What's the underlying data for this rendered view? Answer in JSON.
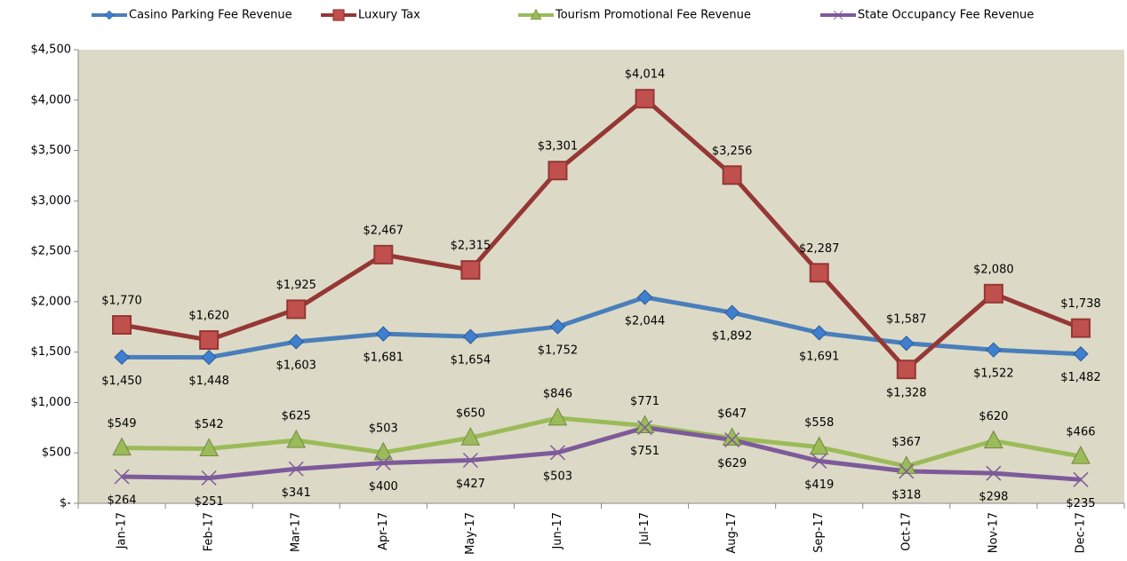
{
  "chart_data": {
    "type": "line",
    "categories": [
      "Jan-17",
      "Feb-17",
      "Mar-17",
      "Apr-17",
      "May-17",
      "Jun-17",
      "Jul-17",
      "Aug-17",
      "Sep-17",
      "Oct-17",
      "Nov-17",
      "Dec-17"
    ],
    "series": [
      {
        "name": "Casino Parking Fee Revenue",
        "color": "#4a7ebb",
        "marker": "diamond",
        "values": [
          1450,
          1448,
          1603,
          1681,
          1654,
          1752,
          2044,
          1892,
          1691,
          1587,
          1522,
          1482
        ],
        "value_labels": [
          "$1,450",
          "$1,448",
          "$1,603",
          "$1,681",
          "$1,654",
          "$1,752",
          "$2,044",
          "$1,892",
          "$1,691",
          "$1,587",
          "$1,522",
          "$1,482"
        ]
      },
      {
        "name": "Luxury Tax",
        "color": "#953735",
        "marker": "square",
        "values": [
          1770,
          1620,
          1925,
          2467,
          2315,
          3301,
          4014,
          3256,
          2287,
          1328,
          2080,
          1738
        ],
        "value_labels": [
          "$1,770",
          "$1,620",
          "$1,925",
          "$2,467",
          "$2,315",
          "$3,301",
          "$4,014",
          "$3,256",
          "$2,287",
          "$1,328",
          "$2,080",
          "$1,738"
        ]
      },
      {
        "name": "Tourism Promotional Fee Revenue",
        "color": "#9bbb59",
        "marker": "triangle",
        "values": [
          549,
          542,
          625,
          503,
          650,
          846,
          771,
          647,
          558,
          367,
          620,
          466
        ],
        "value_labels": [
          "$549",
          "$542",
          "$625",
          "$503",
          "$650",
          "$846",
          "$771",
          "$647",
          "$558",
          "$367",
          "$620",
          "$466"
        ]
      },
      {
        "name": "State Occupancy Fee Revenue",
        "color": "#7e5a9b",
        "marker": "x",
        "values": [
          264,
          251,
          341,
          400,
          427,
          503,
          751,
          629,
          419,
          318,
          298,
          235
        ],
        "value_labels": [
          "$264",
          "$251",
          "$341",
          "$400",
          "$427",
          "$503",
          "$751",
          "$629",
          "$419",
          "$318",
          "$298",
          "$235"
        ]
      }
    ],
    "ylim": [
      0,
      4500
    ],
    "yticks": [
      {
        "value": 0,
        "label": "$-"
      },
      {
        "value": 500,
        "label": "$500"
      },
      {
        "value": 1000,
        "label": "$1,000"
      },
      {
        "value": 1500,
        "label": "$1,500"
      },
      {
        "value": 2000,
        "label": "$2,000"
      },
      {
        "value": 2500,
        "label": "$2,500"
      },
      {
        "value": 3000,
        "label": "$3,000"
      },
      {
        "value": 3500,
        "label": "$3,500"
      },
      {
        "value": 4000,
        "label": "$4,000"
      },
      {
        "value": 4500,
        "label": "$4,500"
      }
    ],
    "grid": false,
    "legend": "top",
    "plot_background": "#dcdac6"
  }
}
